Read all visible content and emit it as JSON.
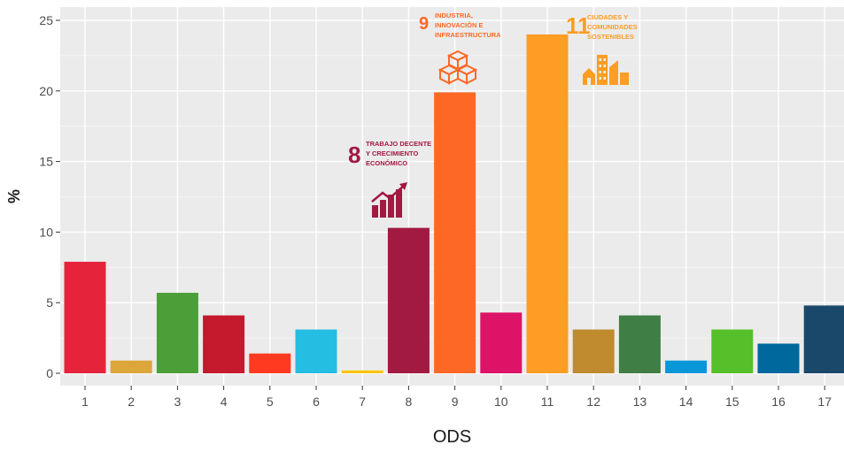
{
  "chart_data": {
    "type": "bar",
    "xlabel": "ODS",
    "ylabel": "%",
    "ylim": [
      0,
      25
    ],
    "yticks": [
      0,
      5,
      10,
      15,
      20,
      25
    ],
    "grid": true,
    "categories": [
      "1",
      "2",
      "3",
      "4",
      "5",
      "6",
      "7",
      "8",
      "9",
      "10",
      "11",
      "12",
      "13",
      "14",
      "15",
      "16",
      "17"
    ],
    "values": [
      7.9,
      0.9,
      5.7,
      4.1,
      1.4,
      3.1,
      0.2,
      10.3,
      19.9,
      4.3,
      24.0,
      3.1,
      4.1,
      0.9,
      3.1,
      2.1,
      4.8
    ],
    "colors": [
      "#E5243B",
      "#DDA63A",
      "#4C9F38",
      "#C5192D",
      "#FF3A21",
      "#26BDE2",
      "#FCC30B",
      "#A21942",
      "#FD6925",
      "#DD1367",
      "#FD9D24",
      "#BF8B2E",
      "#3F7E44",
      "#0A97D9",
      "#56C02B",
      "#00689D",
      "#19486A"
    ],
    "annotations": [
      {
        "category": "8",
        "number": "8",
        "lines": [
          "TRABAJO DECENTE",
          "Y CRECIMIENTO",
          "ECONÓMICO"
        ],
        "icon": "growth-chart-icon",
        "color": "#A21942"
      },
      {
        "category": "9",
        "number": "9",
        "lines": [
          "INDUSTRIA,",
          "INNOVACIÓN E",
          "INFRAESTRUCTURA"
        ],
        "icon": "cubes-icon",
        "color": "#FD6925"
      },
      {
        "category": "11",
        "number": "11",
        "lines": [
          "CIUDADES Y",
          "COMUNIDADES",
          "SOSTENIBLES"
        ],
        "icon": "city-icon",
        "color": "#FD9D24"
      }
    ]
  }
}
